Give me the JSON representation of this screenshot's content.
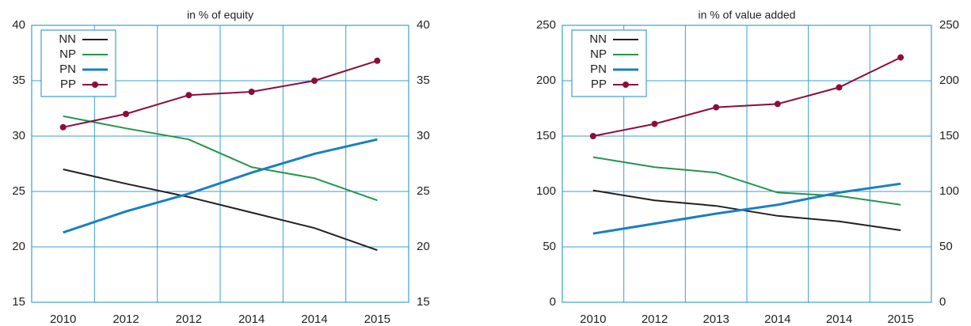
{
  "chart_data": [
    {
      "type": "line",
      "subtitle": "in % of equity",
      "categories": [
        "2010",
        "2012",
        "2012",
        "2014",
        "2014",
        "2015"
      ],
      "ylim": [
        15,
        40
      ],
      "yticks": [
        15,
        20,
        25,
        30,
        35,
        40
      ],
      "y2lim": [
        15,
        40
      ],
      "y2ticks": [
        15,
        20,
        25,
        30,
        35,
        40
      ],
      "grid": true,
      "legend": "top-left",
      "series": [
        {
          "name": "NN",
          "color": "#231f20",
          "values": [
            27.0,
            25.7,
            24.5,
            23.1,
            21.7,
            19.7
          ]
        },
        {
          "name": "NP",
          "color": "#23944a",
          "values": [
            31.8,
            30.7,
            29.7,
            27.2,
            26.2,
            24.2
          ]
        },
        {
          "name": "PN",
          "color": "#1a7fc1",
          "values": [
            21.3,
            23.2,
            24.8,
            26.7,
            28.4,
            29.7
          ]
        },
        {
          "name": "PP",
          "color": "#8c0c3c",
          "markers": true,
          "values": [
            30.8,
            32.0,
            33.7,
            34.0,
            35.0,
            36.8
          ]
        }
      ]
    },
    {
      "type": "line",
      "subtitle": "in % of value added",
      "categories": [
        "2010",
        "2012",
        "2013",
        "2014",
        "2014",
        "2015"
      ],
      "ylim": [
        0,
        250
      ],
      "yticks": [
        0,
        50,
        100,
        150,
        200,
        250
      ],
      "y2lim": [
        0,
        250
      ],
      "y2ticks": [
        0,
        50,
        100,
        150,
        200,
        250
      ],
      "grid": true,
      "legend": "top-left",
      "series": [
        {
          "name": "NN",
          "color": "#231f20",
          "values": [
            101,
            92,
            87,
            78,
            73,
            65
          ]
        },
        {
          "name": "NP",
          "color": "#23944a",
          "values": [
            131,
            122,
            117,
            99,
            96,
            88
          ]
        },
        {
          "name": "PN",
          "color": "#1a7fc1",
          "values": [
            62,
            71,
            80,
            88,
            99,
            107
          ]
        },
        {
          "name": "PP",
          "color": "#8c0c3c",
          "markers": true,
          "values": [
            150,
            161,
            176,
            179,
            194,
            221
          ]
        }
      ]
    }
  ]
}
